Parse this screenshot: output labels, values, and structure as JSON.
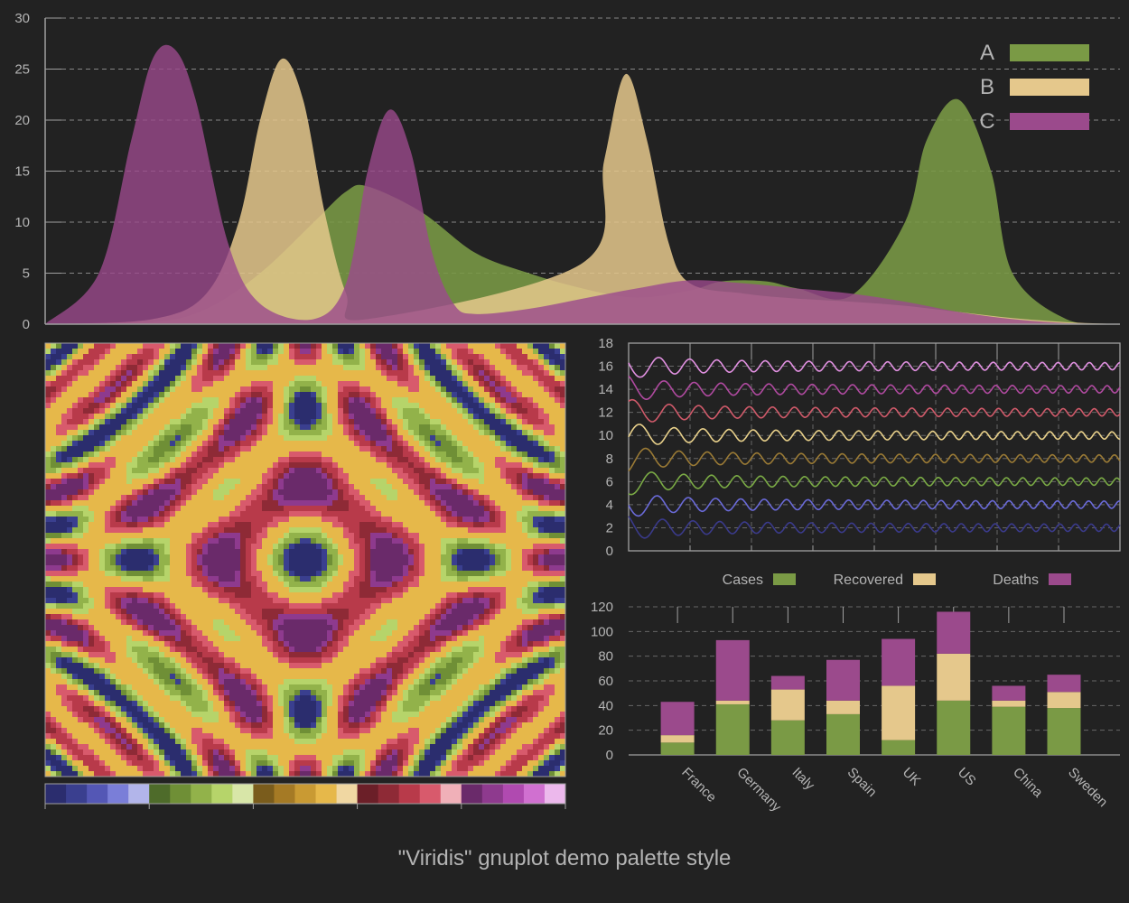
{
  "title": "\"Viridis\" gnuplot demo palette style",
  "colors": {
    "background": "#222222",
    "text": "#b4b4b4",
    "grid": "#a0a0a0",
    "green": "#7a9a45",
    "tan": "#e5c88c",
    "purple": "#9b4a8c",
    "palette_blocks": [
      [
        "#2b2d6e",
        "#3a3f8f",
        "#5457b5",
        "#7a7ed8",
        "#b2b5ea"
      ],
      [
        "#4e6b2a",
        "#6f8f36",
        "#92b24a",
        "#b6d46a",
        "#d8e6a8"
      ],
      [
        "#7a5c1c",
        "#a57a25",
        "#c99a33",
        "#e6b84a",
        "#f0d7a2"
      ],
      [
        "#6b1f28",
        "#8e2a36",
        "#b83a4a",
        "#d85a6c",
        "#f0b0b8"
      ],
      [
        "#6a2a6a",
        "#8e3a8e",
        "#b04ab0",
        "#d070d0",
        "#ecb8ec"
      ]
    ],
    "wave_colors": [
      "#3a3a8a",
      "#6a6ad8",
      "#7aaa45",
      "#9a7a35",
      "#e8d08a",
      "#d05a6a",
      "#b04aa0",
      "#e090e0"
    ]
  },
  "chart_data": [
    {
      "type": "area",
      "name": "top-density",
      "xlim": [
        0,
        100
      ],
      "ylim": [
        0,
        30
      ],
      "yticks": [
        "0",
        "5",
        "10",
        "15",
        "20",
        "25",
        "30"
      ],
      "series": [
        {
          "name": "A",
          "color": "#7a9a45",
          "x": [
            0,
            10,
            15,
            20,
            25,
            28,
            30,
            35,
            40,
            45,
            50,
            55,
            60,
            63,
            67,
            70,
            75,
            80,
            82,
            85,
            88,
            90,
            95,
            100
          ],
          "y": [
            0,
            0.2,
            1.5,
            5,
            10,
            13,
            13.5,
            11,
            7,
            5,
            3.5,
            2.6,
            3.3,
            4.2,
            4.2,
            3.5,
            2.8,
            10,
            18,
            22,
            15,
            5,
            0.5,
            0
          ]
        },
        {
          "name": "B",
          "color": "#e5c88c",
          "x": [
            0,
            10,
            15,
            18,
            20,
            22,
            24,
            26,
            28,
            30,
            50,
            52,
            54,
            56,
            58,
            60,
            65,
            70,
            75,
            80,
            85,
            90,
            95,
            100
          ],
          "y": [
            0,
            0.5,
            3,
            10,
            20,
            26,
            22,
            11,
            3,
            0.5,
            6,
            16,
            24.5,
            18,
            8,
            4,
            3,
            2.5,
            2.2,
            1.8,
            1.2,
            0.6,
            0.2,
            0
          ]
        },
        {
          "name": "C",
          "color": "#9b4a8c",
          "x": [
            0,
            5,
            8,
            10,
            12,
            14,
            17,
            20,
            25,
            28,
            30,
            32,
            34,
            36,
            38,
            40,
            45,
            50,
            55,
            60,
            65,
            70,
            75,
            80,
            85,
            90,
            95,
            100
          ],
          "y": [
            0,
            5,
            18,
            26,
            27,
            22,
            8,
            2,
            0.5,
            4,
            15,
            21,
            17,
            7,
            2,
            1,
            1.5,
            2.5,
            3.5,
            4.3,
            4,
            3.5,
            3,
            2.2,
            1.2,
            0.5,
            0.1,
            0
          ]
        }
      ],
      "legend": [
        "A",
        "B",
        "C"
      ]
    },
    {
      "type": "heatmap",
      "name": "palette-pattern"
    },
    {
      "type": "line",
      "name": "waves",
      "xlim": [
        0,
        8
      ],
      "ylim": [
        0,
        18
      ],
      "yticks": [
        "0",
        "2",
        "4",
        "6",
        "8",
        "10",
        "12",
        "14",
        "16",
        "18"
      ],
      "series_offsets": [
        2,
        4,
        6,
        8,
        10,
        12,
        14,
        16
      ]
    },
    {
      "type": "bar",
      "name": "stacked-bars",
      "categories": [
        "France",
        "Germany",
        "Italy",
        "Spain",
        "UK",
        "US",
        "China",
        "Sweden"
      ],
      "series": [
        {
          "name": "Cases",
          "values": [
            10,
            41,
            28,
            33,
            12,
            44,
            39,
            38
          ]
        },
        {
          "name": "Recovered",
          "values": [
            6,
            3,
            25,
            11,
            44,
            38,
            5,
            13
          ]
        },
        {
          "name": "Deaths",
          "values": [
            27,
            49,
            11,
            33,
            38,
            34,
            12,
            14
          ]
        }
      ],
      "ylim": [
        0,
        120
      ],
      "yticks": [
        "0",
        "20",
        "40",
        "60",
        "80",
        "100",
        "120"
      ],
      "legend": [
        "Cases",
        "Recovered",
        "Deaths"
      ]
    }
  ]
}
